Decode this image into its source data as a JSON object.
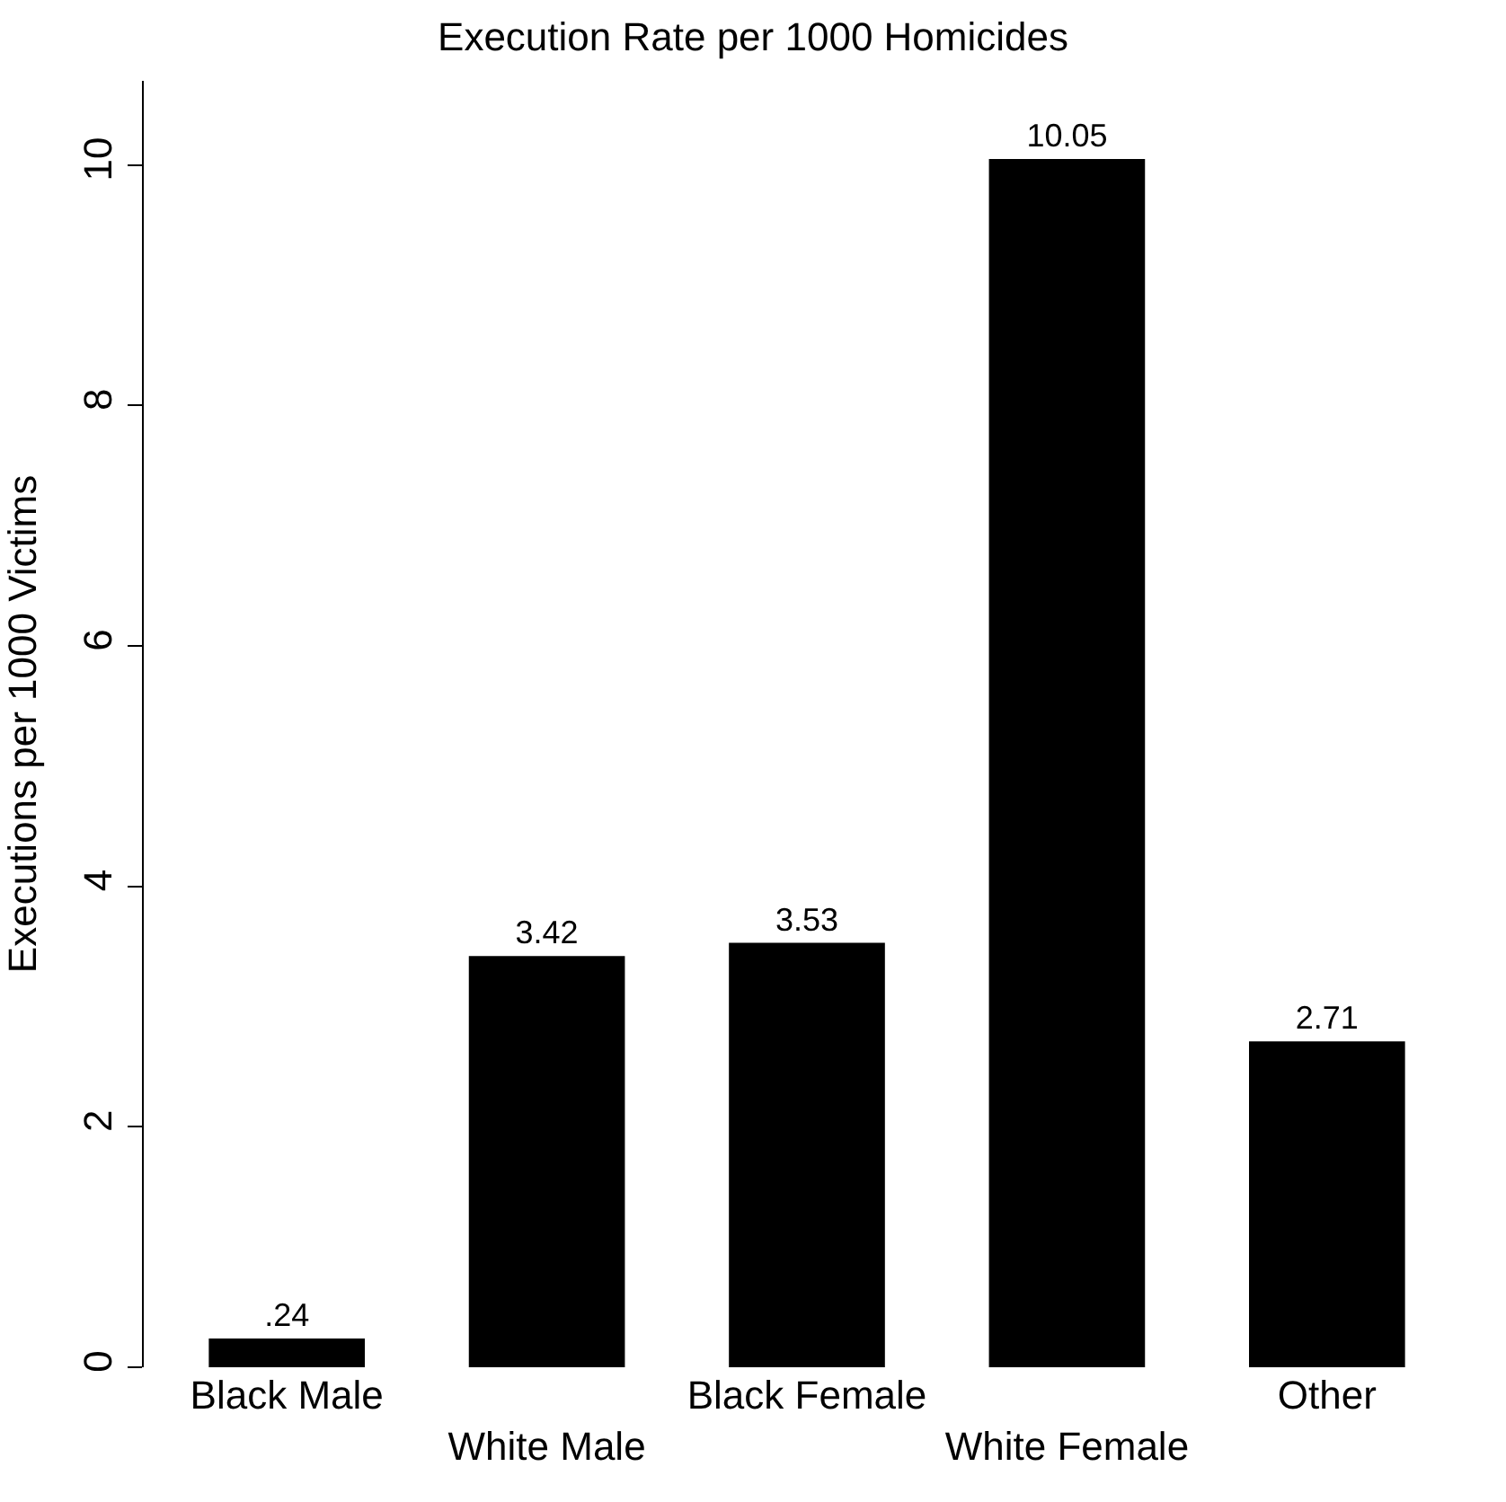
{
  "chart_data": {
    "type": "bar",
    "title": "Execution Rate per 1000 Homicides",
    "ylabel": "Executions per 1000 Victims",
    "categories": [
      "Black Male",
      "White Male",
      "Black Female",
      "White Female",
      "Other"
    ],
    "values": [
      0.24,
      3.42,
      3.53,
      10.05,
      2.71
    ],
    "value_labels": [
      ".24",
      "3.42",
      "3.53",
      "10.05",
      "2.71"
    ],
    "color": "#000000",
    "ylim": [
      0,
      10.7
    ],
    "yticks": [
      0,
      2,
      4,
      6,
      8,
      10
    ]
  }
}
